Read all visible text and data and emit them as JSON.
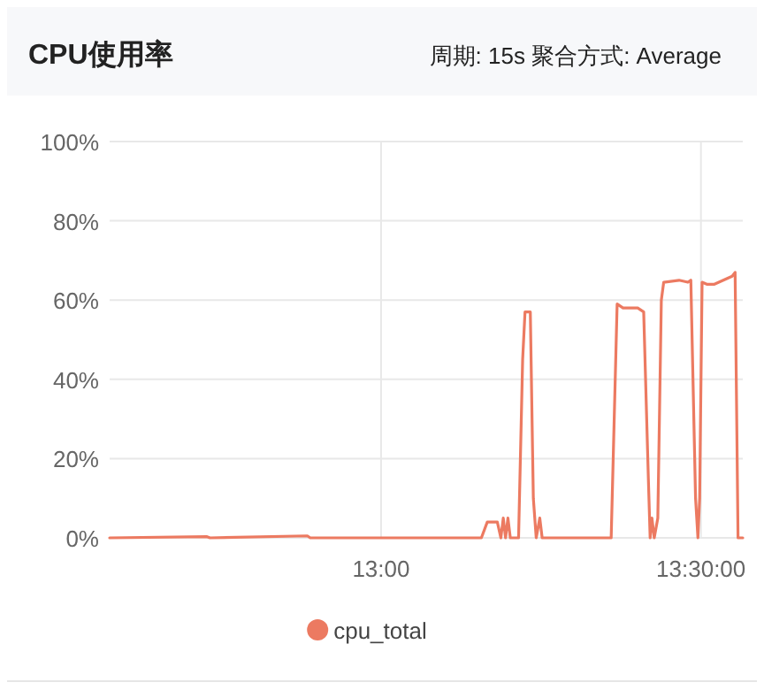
{
  "chart_data": {
    "type": "line",
    "title": "CPU使用率",
    "subtitle": "周期: 15s   聚合方式: Average",
    "x": [
      12.5757,
      12.7279,
      12.7325,
      12.8847,
      12.8893,
      13.1337,
      13.1568,
      13.166,
      13.1817,
      13.1872,
      13.191,
      13.1946,
      13.1983,
      13.202,
      13.2149,
      13.2213,
      13.225,
      13.2333,
      13.238,
      13.2425,
      13.2481,
      13.2518,
      13.3597,
      13.369,
      13.3782,
      13.4012,
      13.4105,
      13.4178,
      13.4206,
      13.4234,
      13.427,
      13.4326,
      13.4381,
      13.4418,
      13.4658,
      13.4796,
      13.4842,
      13.4916,
      13.4953,
      13.498,
      13.5018,
      13.5091,
      13.5211,
      13.5488,
      13.5534,
      13.558,
      13.5654
    ],
    "series": [
      {
        "name": "cpu_total",
        "color": "#ec7a61",
        "values": [
          0,
          0.3,
          0,
          0.5,
          0,
          0,
          0,
          4,
          4,
          0,
          5,
          0,
          5,
          0,
          0,
          45,
          57,
          57,
          10,
          0,
          5,
          0,
          0,
          59,
          58,
          58,
          57,
          15,
          0,
          5,
          0,
          5,
          60,
          64.5,
          65,
          64.5,
          65,
          10,
          0,
          10,
          64.5,
          64,
          64,
          66,
          67,
          0,
          0
        ]
      }
    ],
    "xlim": [
      12.5757,
      13.5654
    ],
    "xticks": [
      {
        "value": 13,
        "label": "13:00"
      },
      {
        "value": 13.5,
        "label": "13:30:00"
      }
    ],
    "ylim": [
      0,
      100
    ],
    "yticks": [
      {
        "value": 0,
        "label": "0%"
      },
      {
        "value": 20,
        "label": "20%"
      },
      {
        "value": 40,
        "label": "40%"
      },
      {
        "value": 60,
        "label": "60%"
      },
      {
        "value": 80,
        "label": "80%"
      },
      {
        "value": 100,
        "label": "100%"
      }
    ],
    "grid": true,
    "legend": "bottom",
    "marker": "none",
    "line_style": "solid"
  }
}
